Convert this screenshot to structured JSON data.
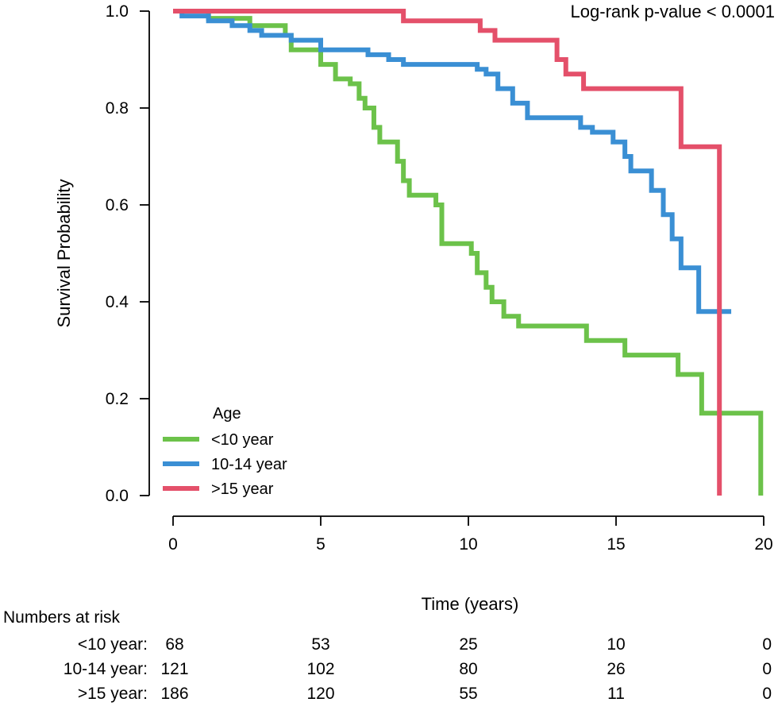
{
  "chart_data": {
    "type": "line",
    "subtype": "kaplan-meier",
    "title": "",
    "annotation": "Log-rank p-value < 0.0001",
    "xlabel": "Time (years)",
    "ylabel": "Survival Probability",
    "xlim": [
      0,
      20
    ],
    "ylim": [
      0,
      1
    ],
    "x_ticks": [
      0,
      5,
      10,
      15,
      20
    ],
    "x_tick_labels": [
      "0",
      "5",
      "10",
      "15",
      "20"
    ],
    "y_ticks": [
      0,
      0.2,
      0.4,
      0.6,
      0.8,
      1.0
    ],
    "y_tick_labels": [
      "0.0",
      "0.2",
      "0.4",
      "0.6",
      "0.8",
      "1.0"
    ],
    "legend": {
      "title": "Age",
      "placement": "bottom-left",
      "entries": [
        "<10 year",
        "10-14 year",
        ">15 year"
      ]
    },
    "series": [
      {
        "name": "<10 year",
        "color": "#6cc24a",
        "steps": [
          [
            0,
            1.0
          ],
          [
            1.2,
            0.985
          ],
          [
            2.6,
            0.97
          ],
          [
            3.8,
            0.95
          ],
          [
            4.0,
            0.92
          ],
          [
            5.0,
            0.89
          ],
          [
            5.5,
            0.86
          ],
          [
            6.0,
            0.85
          ],
          [
            6.3,
            0.82
          ],
          [
            6.5,
            0.8
          ],
          [
            6.8,
            0.76
          ],
          [
            7.0,
            0.73
          ],
          [
            7.6,
            0.69
          ],
          [
            7.8,
            0.65
          ],
          [
            8.0,
            0.62
          ],
          [
            8.9,
            0.6
          ],
          [
            9.1,
            0.52
          ],
          [
            10.1,
            0.5
          ],
          [
            10.3,
            0.46
          ],
          [
            10.6,
            0.43
          ],
          [
            10.8,
            0.4
          ],
          [
            11.2,
            0.37
          ],
          [
            11.7,
            0.35
          ],
          [
            14.0,
            0.32
          ],
          [
            15.3,
            0.29
          ],
          [
            17.1,
            0.25
          ],
          [
            17.9,
            0.17
          ],
          [
            19.9,
            0.0
          ]
        ],
        "end": 19.9
      },
      {
        "name": "10-14 year",
        "color": "#3a8fd4",
        "steps": [
          [
            0,
            1.0
          ],
          [
            0.3,
            0.99
          ],
          [
            1.2,
            0.98
          ],
          [
            2.0,
            0.97
          ],
          [
            2.6,
            0.96
          ],
          [
            3.0,
            0.95
          ],
          [
            4.0,
            0.94
          ],
          [
            5.0,
            0.92
          ],
          [
            6.6,
            0.91
          ],
          [
            7.3,
            0.9
          ],
          [
            7.8,
            0.89
          ],
          [
            10.3,
            0.88
          ],
          [
            10.6,
            0.87
          ],
          [
            11.0,
            0.84
          ],
          [
            11.5,
            0.81
          ],
          [
            12.0,
            0.78
          ],
          [
            13.8,
            0.76
          ],
          [
            14.2,
            0.75
          ],
          [
            14.9,
            0.73
          ],
          [
            15.3,
            0.7
          ],
          [
            15.5,
            0.67
          ],
          [
            16.2,
            0.63
          ],
          [
            16.6,
            0.58
          ],
          [
            16.9,
            0.53
          ],
          [
            17.2,
            0.47
          ],
          [
            17.8,
            0.38
          ]
        ],
        "end": 18.9
      },
      {
        "name": ">15 year",
        "color": "#e4506a",
        "steps": [
          [
            0,
            1.0
          ],
          [
            7.8,
            0.98
          ],
          [
            10.4,
            0.96
          ],
          [
            10.9,
            0.94
          ],
          [
            13.0,
            0.9
          ],
          [
            13.3,
            0.87
          ],
          [
            13.9,
            0.84
          ],
          [
            17.2,
            0.72
          ],
          [
            18.5,
            0.0
          ]
        ],
        "end": 18.5
      }
    ],
    "risk_table": {
      "title": "Numbers at risk",
      "time_points": [
        0,
        5,
        10,
        15,
        20
      ],
      "rows": [
        {
          "label": "<10 year:",
          "values": [
            "68",
            "53",
            "25",
            "10",
            "0"
          ]
        },
        {
          "label": "10-14 year:",
          "values": [
            "121",
            "102",
            "80",
            "26",
            "0"
          ]
        },
        {
          "label": ">15 year:",
          "values": [
            "186",
            "120",
            "55",
            "11",
            "0"
          ]
        }
      ]
    }
  }
}
